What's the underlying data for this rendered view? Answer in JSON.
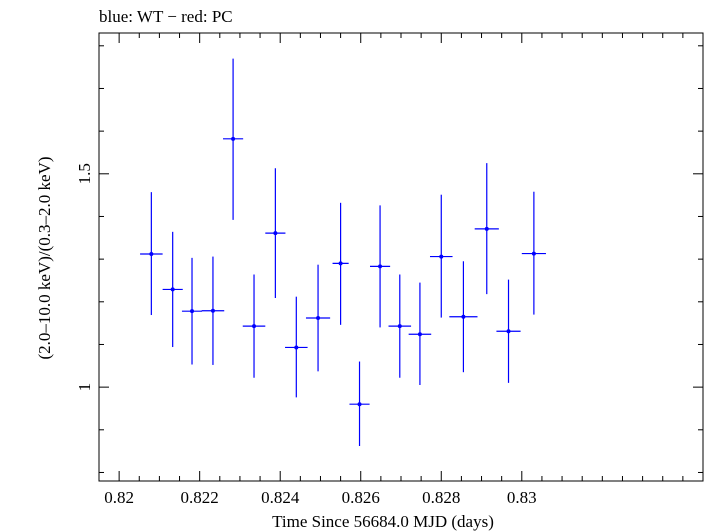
{
  "chart_data": {
    "type": "scatter",
    "title": "blue: WT − red: PC",
    "xlabel": "Time Since 56684.0 MJD (days)",
    "ylabel": "(2.0–10.0 keV)/(0.3–2.0 keV)",
    "xlim": [
      0.8195,
      0.8345
    ],
    "ylim": [
      0.78,
      1.83
    ],
    "x_ticks": [
      {
        "value": 0.82,
        "label": "0.82"
      },
      {
        "value": 0.822,
        "label": "0.822"
      },
      {
        "value": 0.824,
        "label": "0.824"
      },
      {
        "value": 0.826,
        "label": "0.826"
      },
      {
        "value": 0.828,
        "label": "0.828"
      },
      {
        "value": 0.83,
        "label": "0.83"
      }
    ],
    "y_ticks": [
      {
        "value": 1.0,
        "label": "1"
      },
      {
        "value": 1.5,
        "label": "1.5"
      }
    ],
    "grid": false,
    "series": [
      {
        "color": "#0000ff",
        "points": [
          {
            "x": 0.8208,
            "xerr": 0.00028,
            "y": 1.312,
            "ylo": 1.169,
            "yhi": 1.457
          },
          {
            "x": 0.82133,
            "xerr": 0.00025,
            "y": 1.229,
            "ylo": 1.094,
            "yhi": 1.364
          },
          {
            "x": 0.82181,
            "xerr": 0.00025,
            "y": 1.178,
            "ylo": 1.053,
            "yhi": 1.303
          },
          {
            "x": 0.82233,
            "xerr": 0.00028,
            "y": 1.179,
            "ylo": 1.052,
            "yhi": 1.306
          },
          {
            "x": 0.82283,
            "xerr": 0.00025,
            "y": 1.582,
            "ylo": 1.392,
            "yhi": 1.77
          },
          {
            "x": 0.82335,
            "xerr": 0.00028,
            "y": 1.143,
            "ylo": 1.022,
            "yhi": 1.264
          },
          {
            "x": 0.82388,
            "xerr": 0.00025,
            "y": 1.361,
            "ylo": 1.209,
            "yhi": 1.513
          },
          {
            "x": 0.8244,
            "xerr": 0.00028,
            "y": 1.093,
            "ylo": 0.976,
            "yhi": 1.212
          },
          {
            "x": 0.82494,
            "xerr": 0.0003,
            "y": 1.162,
            "ylo": 1.037,
            "yhi": 1.287
          },
          {
            "x": 0.8255,
            "xerr": 0.0002,
            "y": 1.29,
            "ylo": 1.146,
            "yhi": 1.432
          },
          {
            "x": 0.82597,
            "xerr": 0.00025,
            "y": 0.96,
            "ylo": 0.862,
            "yhi": 1.06
          },
          {
            "x": 0.82648,
            "xerr": 0.00025,
            "y": 1.283,
            "ylo": 1.14,
            "yhi": 1.426
          },
          {
            "x": 0.82697,
            "xerr": 0.00028,
            "y": 1.143,
            "ylo": 1.022,
            "yhi": 1.264
          },
          {
            "x": 0.82747,
            "xerr": 0.00028,
            "y": 1.124,
            "ylo": 1.005,
            "yhi": 1.245
          },
          {
            "x": 0.828,
            "xerr": 0.00028,
            "y": 1.306,
            "ylo": 1.163,
            "yhi": 1.451
          },
          {
            "x": 0.82855,
            "xerr": 0.00035,
            "y": 1.165,
            "ylo": 1.035,
            "yhi": 1.295
          },
          {
            "x": 0.82913,
            "xerr": 0.0003,
            "y": 1.371,
            "ylo": 1.218,
            "yhi": 1.525
          },
          {
            "x": 0.82967,
            "xerr": 0.0003,
            "y": 1.131,
            "ylo": 1.01,
            "yhi": 1.252
          },
          {
            "x": 0.8303,
            "xerr": 0.0003,
            "y": 1.313,
            "ylo": 1.17,
            "yhi": 1.458
          }
        ]
      }
    ]
  }
}
